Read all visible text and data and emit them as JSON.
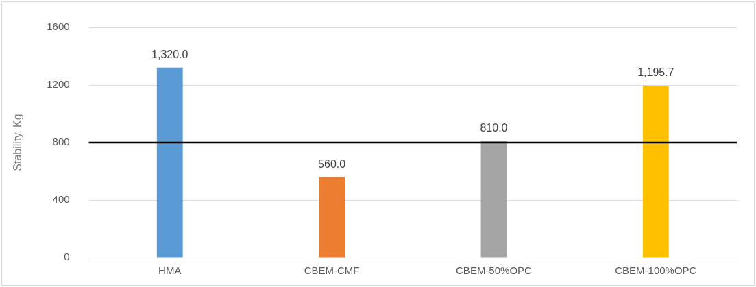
{
  "chart_data": {
    "type": "bar",
    "ylabel": "Stability, Kg",
    "categories": [
      "HMA",
      "CBEM-CMF",
      "CBEM-50%OPC",
      "CBEM-100%OPC"
    ],
    "values": [
      1320,
      560,
      810,
      1195.7
    ],
    "colors": [
      "#5b9bd5",
      "#ed7d31",
      "#a5a5a5",
      "#ffc000"
    ],
    "value_labels": [
      "1,320.0",
      "560.0",
      "810.0",
      "1,195.7"
    ],
    "ylim": [
      0,
      1600
    ],
    "yticks": [
      0,
      400,
      800,
      1200,
      1600
    ],
    "grid": "y",
    "legend": false,
    "ref_lines": [
      {
        "axis": "y",
        "value": 800,
        "color": "#000000"
      }
    ]
  }
}
